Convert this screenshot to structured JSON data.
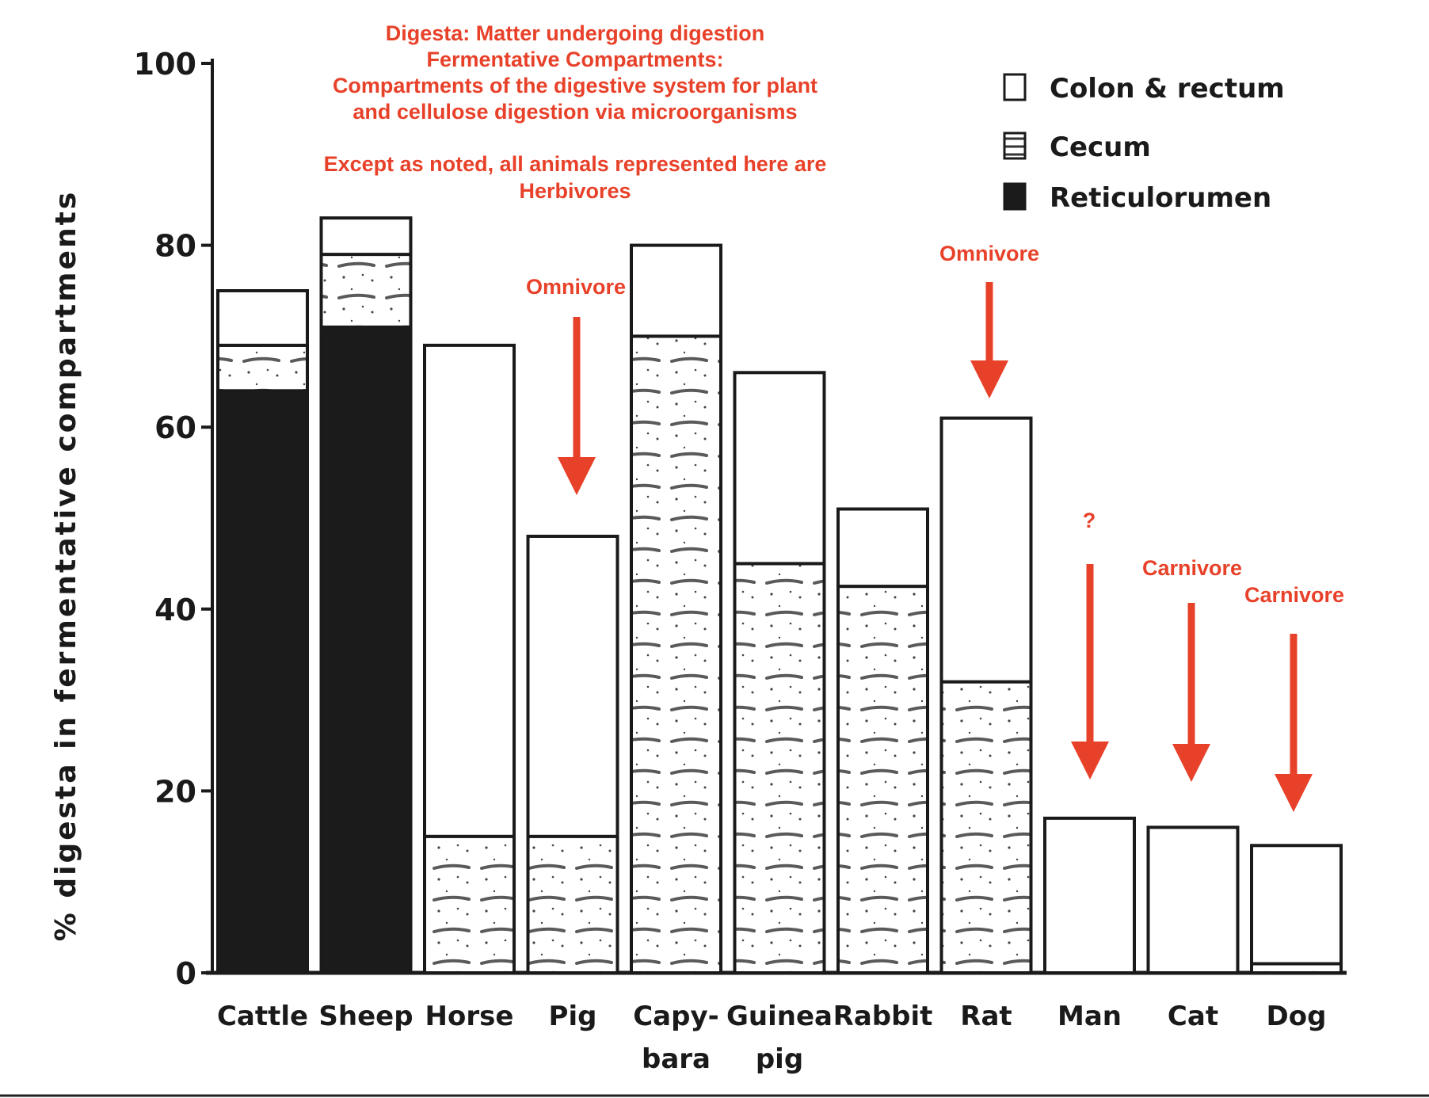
{
  "chart_data": {
    "type": "bar",
    "stacked": true,
    "ylabel": "% digesta in fermentative compartments",
    "ylim": [
      0,
      100
    ],
    "yticks": [
      0,
      20,
      40,
      60,
      80,
      100
    ],
    "categories": [
      [
        "Cattle"
      ],
      [
        "Sheep"
      ],
      [
        "Horse"
      ],
      [
        "Pig"
      ],
      [
        "Capy-",
        "bara"
      ],
      [
        "Guinea",
        "pig"
      ],
      [
        "Rabbit"
      ],
      [
        "Rat"
      ],
      [
        "Man"
      ],
      [
        "Cat"
      ],
      [
        "Dog"
      ]
    ],
    "series": [
      {
        "name": "Reticulorumen",
        "values": [
          64,
          71,
          0,
          0,
          0,
          0,
          0,
          0,
          0,
          0,
          0
        ]
      },
      {
        "name": "Cecum",
        "values": [
          5,
          8,
          15,
          15,
          70,
          45,
          42.5,
          32,
          0,
          0,
          1
        ]
      },
      {
        "name": "Colon & rectum",
        "values": [
          6,
          4,
          54,
          33,
          10,
          21,
          8.5,
          29,
          17,
          16,
          13
        ]
      }
    ],
    "legend": {
      "placement": "top-right",
      "items": [
        "Colon & rectum",
        "Cecum",
        "Reticulorumen"
      ]
    },
    "notes": [
      "Digesta:  Matter undergoing digestion",
      "Fermentative Compartments:",
      "Compartments of the digestive system for plant",
      "and cellulose digestion via microorganisms",
      "",
      "Except as noted, all animals represented here are",
      "Herbivores"
    ],
    "annotations": [
      {
        "category": "Pig",
        "text": "Omnivore"
      },
      {
        "category": "Rat",
        "text": "Omnivore"
      },
      {
        "category": "Man",
        "text": "?"
      },
      {
        "category": "Cat",
        "text": "Carnivore"
      },
      {
        "category": "Dog",
        "text": "Carnivore"
      }
    ],
    "colors": {
      "reticulorumen": "#1b1b1b",
      "cecum_stroke": "#555555",
      "colon": "#ffffff",
      "annotation": "#e8412a"
    }
  }
}
